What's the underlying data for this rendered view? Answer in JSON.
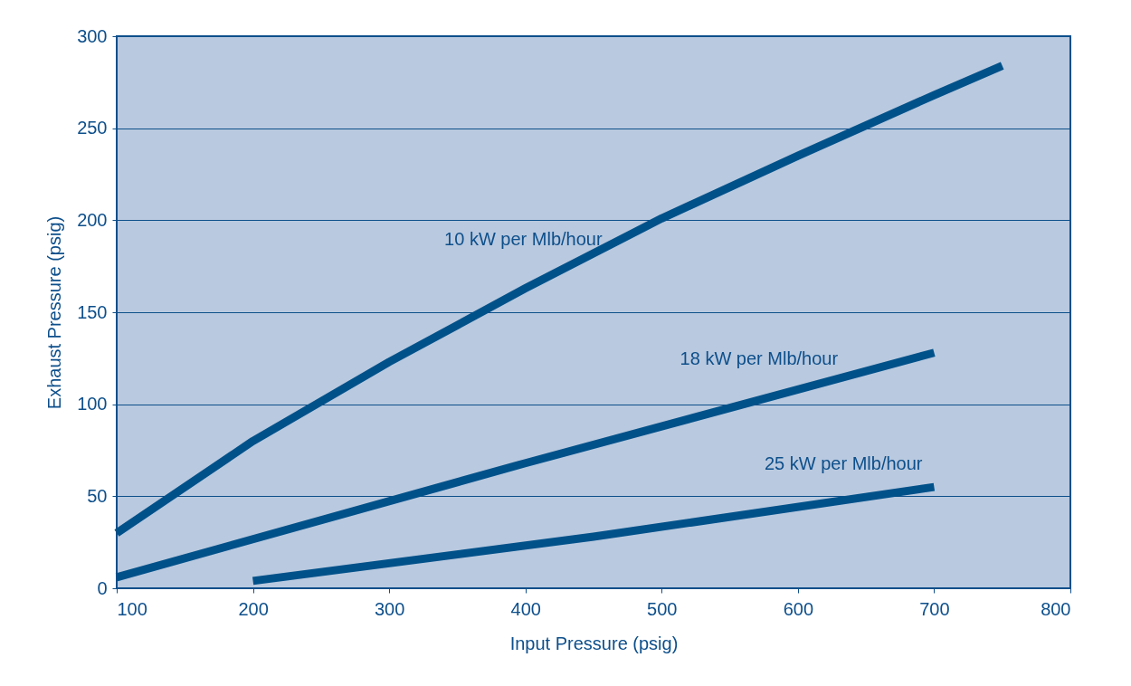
{
  "chart_data": {
    "type": "line",
    "xlabel": "Input Pressure (psig)",
    "ylabel": "Exhaust Pressure (psig)",
    "xlim": [
      100,
      800
    ],
    "xticks": [
      100,
      200,
      300,
      400,
      500,
      600,
      700,
      800
    ],
    "ylim": [
      0,
      300
    ],
    "yticks": [
      0,
      50,
      100,
      150,
      200,
      250,
      300
    ],
    "grid": "y",
    "legend": false,
    "marker": "none",
    "line_style": "solid",
    "series": [
      {
        "name": "10 kW per Mlb/hour",
        "color": "#00518a",
        "x": [
          100,
          200,
          300,
          400,
          500,
          600,
          700,
          750
        ],
        "values": [
          30,
          80,
          123,
          163,
          201,
          235,
          268,
          284
        ]
      },
      {
        "name": "18 kW per Mlb/hour",
        "color": "#00518a",
        "x": [
          100,
          400,
          700
        ],
        "values": [
          6,
          68,
          128
        ]
      },
      {
        "name": "25 kW per Mlb/hour",
        "color": "#00518a",
        "x": [
          200,
          450,
          700
        ],
        "values": [
          4,
          28,
          55
        ]
      }
    ]
  }
}
